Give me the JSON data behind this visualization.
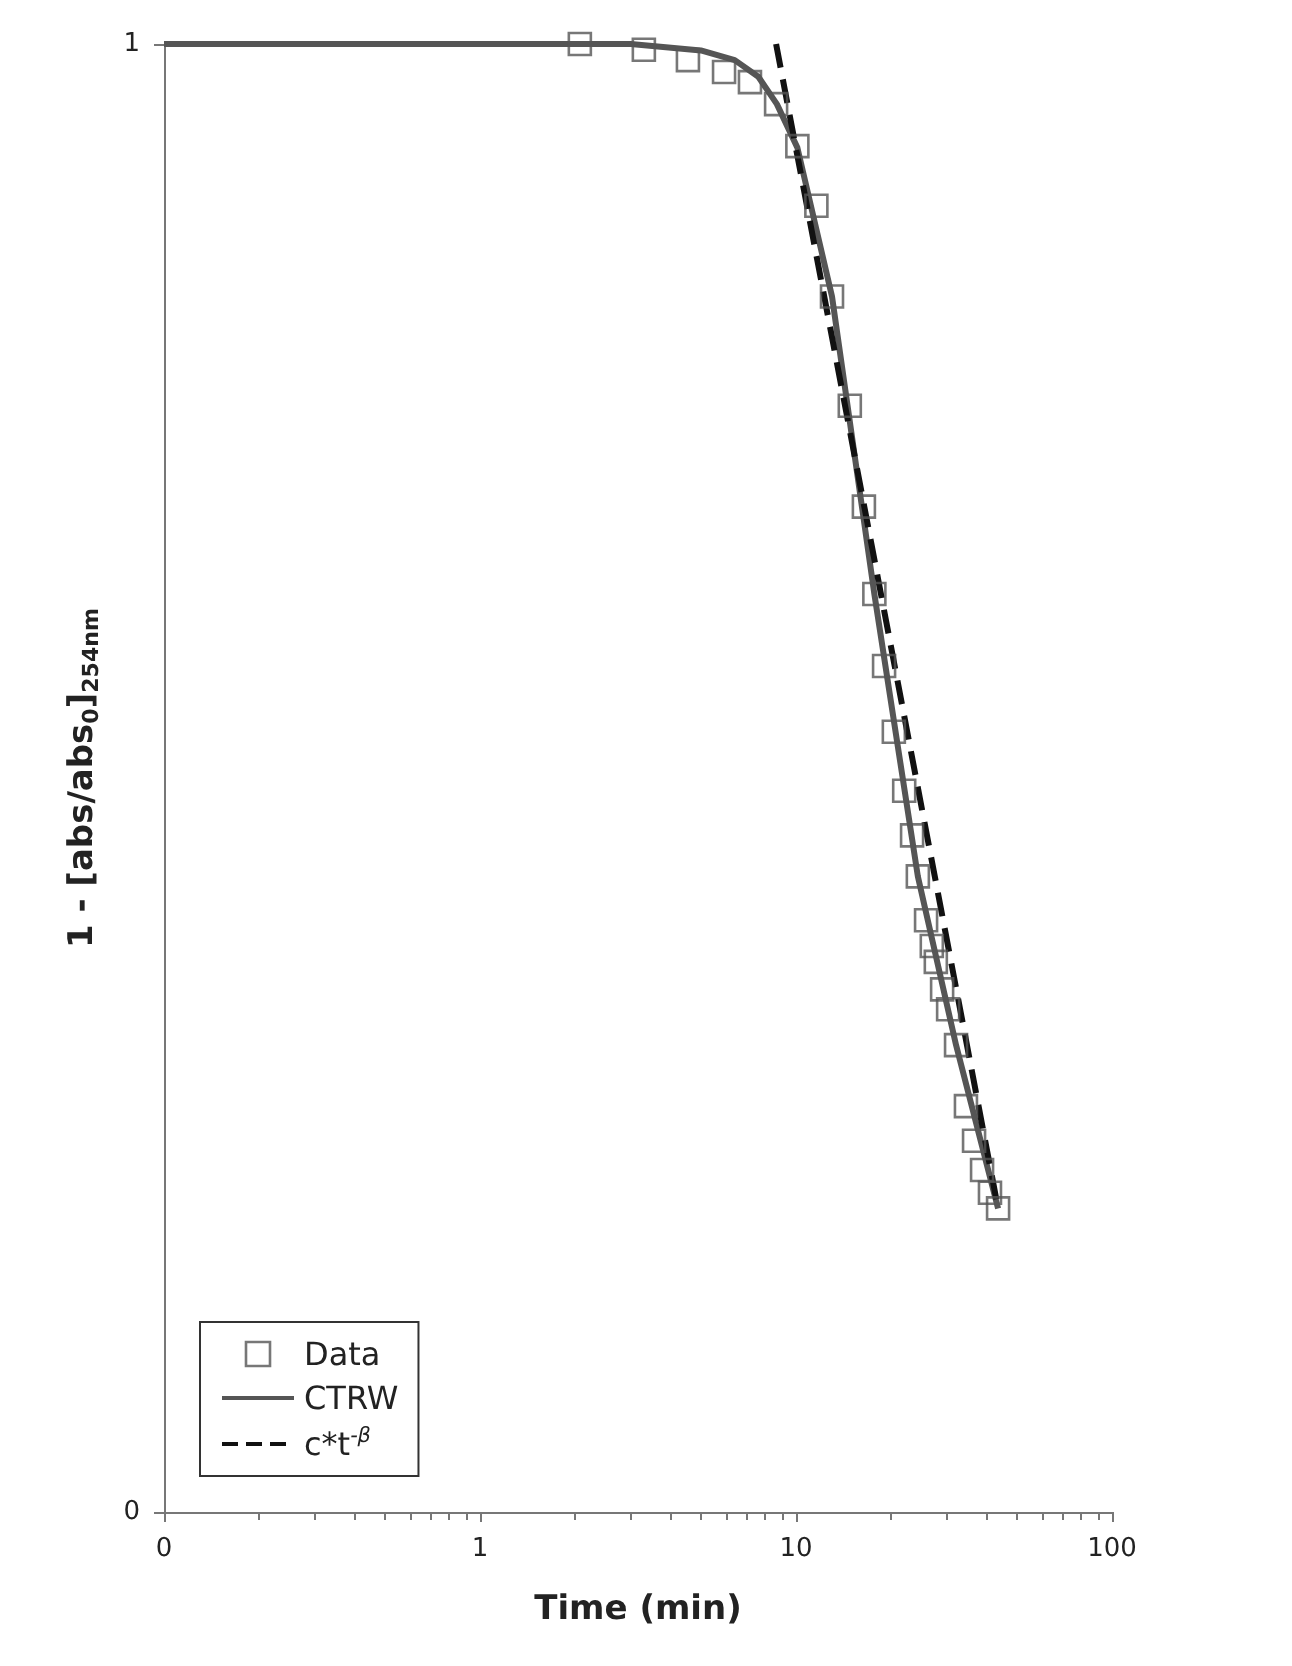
{
  "chart_data": {
    "type": "scatter",
    "xlabel": "Time (min)",
    "ylabel": "1 - [abs/abs$_{0}$]$_{254nm}$",
    "log": "xy",
    "grid": false,
    "legend": "bottom left",
    "xlim": [
      0.1,
      100
    ],
    "xticks": [
      {
        "value": 0.1,
        "label": "0"
      },
      1,
      10,
      100
    ],
    "ylim": [
      0.1,
      1
    ],
    "yticks": [
      {
        "value": 0.1,
        "label": "0"
      },
      1
    ],
    "series": [
      {
        "name": "Data",
        "marker": "square",
        "color": "#555555",
        "x": [
          2.07,
          3.3,
          4.55,
          5.92,
          7.15,
          8.65,
          10.1,
          11.6,
          13.0,
          14.8,
          16.4,
          17.7,
          19.0,
          20.4,
          22.0,
          23.3,
          24.3,
          25.8,
          26.9,
          27.7,
          29.0,
          30.3,
          32.1,
          34.5,
          36.6,
          38.8,
          41.1,
          43.6
        ],
        "values": [
          1.0,
          0.991,
          0.975,
          0.957,
          0.942,
          0.91,
          0.852,
          0.776,
          0.673,
          0.567,
          0.484,
          0.422,
          0.377,
          0.34,
          0.31,
          0.289,
          0.271,
          0.253,
          0.243,
          0.237,
          0.227,
          0.22,
          0.208,
          0.189,
          0.179,
          0.171,
          0.165,
          0.161
        ]
      },
      {
        "name": "CTRW",
        "type": "line",
        "marker": "none",
        "line_style": "solid",
        "color": "#555555",
        "x": [
          0.1,
          1,
          3,
          5,
          6.4,
          7.6,
          8.7,
          10.1,
          13.0,
          17.7,
          24.3,
          32.1,
          43.6
        ],
        "values": [
          1.0,
          1.0,
          1.0,
          0.99,
          0.975,
          0.95,
          0.91,
          0.85,
          0.673,
          0.422,
          0.271,
          0.208,
          0.161
        ]
      },
      {
        "name": "c*t$^{-β}$",
        "type": "line",
        "marker": "none",
        "line_style": "dashed",
        "color": "#111111",
        "x": [
          8.65,
          43.6
        ],
        "values": [
          1.0,
          0.161
        ]
      }
    ]
  }
}
